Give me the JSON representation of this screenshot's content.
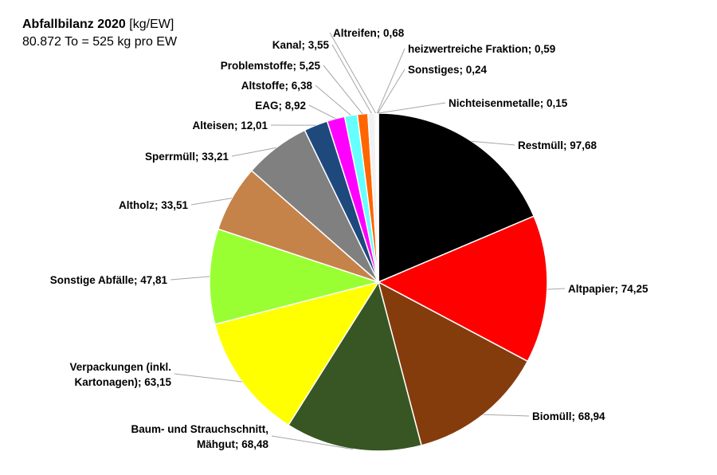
{
  "chart_data": {
    "type": "pie",
    "title": "Abfallbilanz 2020",
    "title_unit": "[kg/EW]",
    "subtitle": "80.872 To = 525 kg pro EW",
    "legend": "none",
    "slices": [
      {
        "label": "Restmüll",
        "value_text": "97,68",
        "value": 97.68,
        "color": "#000000"
      },
      {
        "label": "Altpapier",
        "value_text": "74,25",
        "value": 74.25,
        "color": "#ff0000"
      },
      {
        "label": "Biomüll",
        "value_text": "68,94",
        "value": 68.94,
        "color": "#843c0c"
      },
      {
        "label": "Baum- und Strauchschnitt, Mähgut",
        "value_text": "68,48",
        "value": 68.48,
        "color": "#375623"
      },
      {
        "label": "Verpackungen (inkl. Kartonagen)",
        "value_text": "63,15",
        "value": 63.15,
        "color": "#ffff00"
      },
      {
        "label": "Sonstige Abfälle",
        "value_text": "47,81",
        "value": 47.81,
        "color": "#99ff33"
      },
      {
        "label": "Altholz",
        "value_text": "33,51",
        "value": 33.51,
        "color": "#c5834a"
      },
      {
        "label": "Sperrmüll",
        "value_text": "33,21",
        "value": 33.21,
        "color": "#808080"
      },
      {
        "label": "Alteisen",
        "value_text": "12,01",
        "value": 12.01,
        "color": "#1f497d"
      },
      {
        "label": "EAG",
        "value_text": "8,92",
        "value": 8.92,
        "color": "#ff00ff"
      },
      {
        "label": "Altstoffe",
        "value_text": "6,38",
        "value": 6.38,
        "color": "#66ffff"
      },
      {
        "label": "Problemstoffe",
        "value_text": "5,25",
        "value": 5.25,
        "color": "#ff6600"
      },
      {
        "label": "Kanal",
        "value_text": "3,55",
        "value": 3.55,
        "color": "#f2f2f2"
      },
      {
        "label": "Altreifen",
        "value_text": "0,68",
        "value": 0.68,
        "color": "#bfbfbf"
      },
      {
        "label": "heizwertreiche Fraktion",
        "value_text": "0,59",
        "value": 0.59,
        "color": "#7f7f7f"
      },
      {
        "label": "Sonstiges",
        "value_text": "0,24",
        "value": 0.24,
        "color": "#d9d9d9"
      },
      {
        "label": "Nichteisenmetalle",
        "value_text": "0,15",
        "value": 0.15,
        "color": "#a6a6a6"
      }
    ]
  }
}
